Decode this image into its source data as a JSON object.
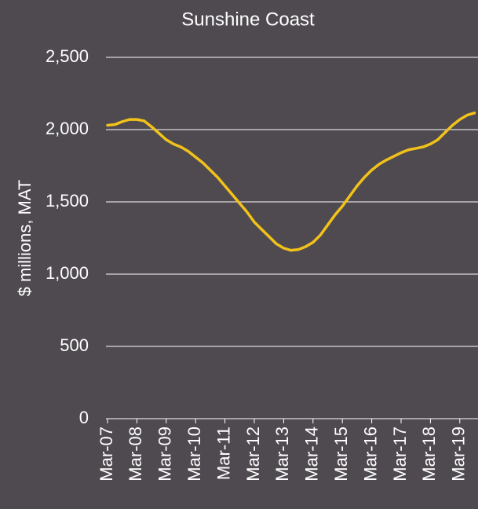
{
  "chart_data": {
    "type": "line",
    "title": "Sunshine Coast",
    "y_label": "$ millions, MAT",
    "categories": [
      "Mar-07",
      null,
      null,
      null,
      "Mar-08",
      null,
      null,
      null,
      "Mar-09",
      null,
      null,
      null,
      "Mar-10",
      null,
      null,
      null,
      "Mar-11",
      null,
      null,
      null,
      "Mar-12",
      null,
      null,
      null,
      "Mar-13",
      null,
      null,
      null,
      "Mar-14",
      null,
      null,
      null,
      "Mar-15",
      null,
      null,
      null,
      "Mar-16",
      null,
      null,
      null,
      "Mar-17",
      null,
      null,
      null,
      "Mar-18",
      null,
      null,
      null,
      "Mar-19",
      null,
      null
    ],
    "series": [
      {
        "color": "#f2c21b",
        "values": [
          2030,
          2035,
          2055,
          2070,
          2070,
          2060,
          2020,
          1975,
          1930,
          1900,
          1880,
          1850,
          1810,
          1770,
          1720,
          1670,
          1610,
          1550,
          1490,
          1430,
          1360,
          1310,
          1260,
          1210,
          1180,
          1165,
          1170,
          1190,
          1220,
          1270,
          1340,
          1410,
          1470,
          1540,
          1610,
          1670,
          1720,
          1760,
          1790,
          1815,
          1840,
          1860,
          1870,
          1880,
          1900,
          1930,
          1980,
          2030,
          2070,
          2100,
          2115
        ]
      }
    ],
    "ylim": [
      0,
      2500
    ],
    "yticks": [
      0,
      500,
      {
        "value": 1000,
        "label": "1,000"
      },
      {
        "value": 1500,
        "label": "1,500"
      },
      {
        "value": 2000,
        "label": "2,000"
      },
      {
        "value": 2500,
        "label": "2,500"
      }
    ],
    "grid": true
  }
}
